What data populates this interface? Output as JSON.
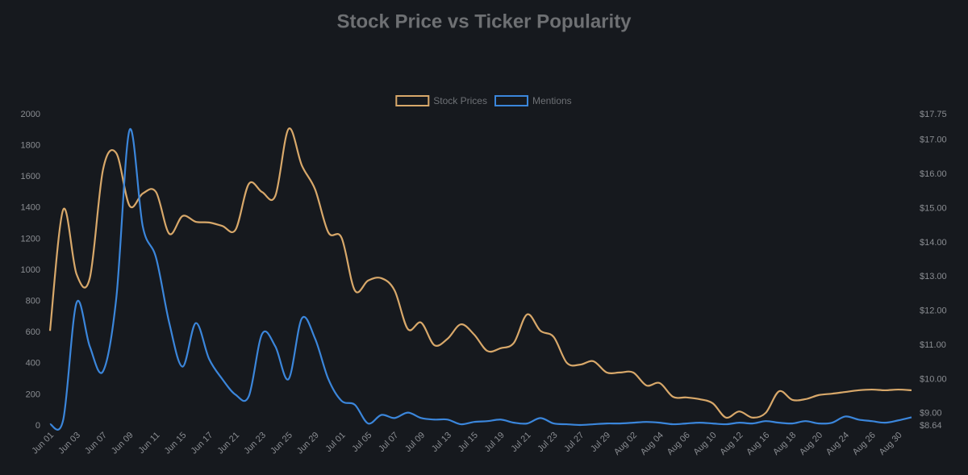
{
  "chart_data": {
    "type": "line",
    "title": "Stock Price vs Ticker Popularity",
    "categories": [
      "Jun 01",
      null,
      "Jun 03",
      null,
      "Jun 07",
      null,
      "Jun 09",
      null,
      "Jun 11",
      null,
      "Jun 15",
      null,
      "Jun 17",
      null,
      "Jun 21",
      null,
      "Jun 23",
      null,
      "Jun 25",
      null,
      "Jun 29",
      null,
      "Jul 01",
      null,
      "Jul 05",
      null,
      "Jul 07",
      null,
      "Jul 09",
      null,
      "Jul 13",
      null,
      "Jul 15",
      null,
      "Jul 19",
      null,
      "Jul 21",
      null,
      "Jul 23",
      null,
      "Jul 27",
      null,
      "Jul 29",
      null,
      "Aug 02",
      null,
      "Aug 04",
      null,
      "Aug 06",
      null,
      "Aug 10",
      null,
      "Aug 12",
      null,
      "Aug 16",
      null,
      "Aug 18",
      null,
      "Aug 20",
      null,
      "Aug 24",
      null,
      "Aug 26",
      null,
      "Aug 30",
      null
    ],
    "series": [
      {
        "name": "Stock Prices",
        "color": "#d8a86a",
        "axis": "y2",
        "values": [
          11.42,
          14.97,
          13.08,
          12.96,
          16.14,
          16.62,
          15.08,
          15.44,
          15.48,
          14.26,
          14.78,
          14.61,
          14.59,
          14.49,
          14.38,
          15.72,
          15.48,
          15.37,
          17.33,
          16.26,
          15.56,
          14.3,
          14.14,
          12.6,
          12.89,
          12.96,
          12.6,
          11.47,
          11.66,
          11,
          11.19,
          11.61,
          11.31,
          10.83,
          10.91,
          11.07,
          11.9,
          11.42,
          11.24,
          10.48,
          10.43,
          10.53,
          10.2,
          10.2,
          10.2,
          9.82,
          9.89,
          9.49,
          9.47,
          9.42,
          9.3,
          8.88,
          9.06,
          8.88,
          9.02,
          9.65,
          9.4,
          9.42,
          9.54,
          9.58,
          9.63,
          9.68,
          9.7,
          9.68,
          9.7,
          9.68
        ]
      },
      {
        "name": "Mentions",
        "color": "#3b86db",
        "values": [
          10,
          40,
          790,
          510,
          350,
          820,
          1900,
          1280,
          1080,
          660,
          380,
          660,
          430,
          300,
          200,
          190,
          590,
          510,
          300,
          690,
          560,
          300,
          160,
          135,
          15,
          70,
          50,
          85,
          50,
          40,
          40,
          10,
          25,
          30,
          40,
          20,
          15,
          50,
          15,
          10,
          5,
          10,
          15,
          15,
          20,
          25,
          20,
          10,
          15,
          20,
          15,
          10,
          20,
          15,
          30,
          20,
          15,
          30,
          15,
          20,
          60,
          40,
          30,
          20,
          35,
          55
        ]
      }
    ],
    "ylim": [
      0,
      2000
    ],
    "yticks": [
      0,
      200,
      400,
      600,
      800,
      1000,
      1200,
      1400,
      1600,
      1800,
      2000
    ],
    "y2lim": [
      8.64,
      17.75
    ],
    "y2ticks": [
      {
        "value": 8.64,
        "label": "$8.64"
      },
      {
        "value": 9,
        "label": "$9.00"
      },
      {
        "value": 10,
        "label": "$10.00"
      },
      {
        "value": 11,
        "label": "$11.00"
      },
      {
        "value": 12,
        "label": "$12.00"
      },
      {
        "value": 13,
        "label": "$13.00"
      },
      {
        "value": 14,
        "label": "$14.00"
      },
      {
        "value": 15,
        "label": "$15.00"
      },
      {
        "value": 16,
        "label": "$16.00"
      },
      {
        "value": 17,
        "label": "$17.00"
      },
      {
        "value": 17.75,
        "label": "$17.75"
      }
    ],
    "grid": false,
    "legend": "top"
  }
}
